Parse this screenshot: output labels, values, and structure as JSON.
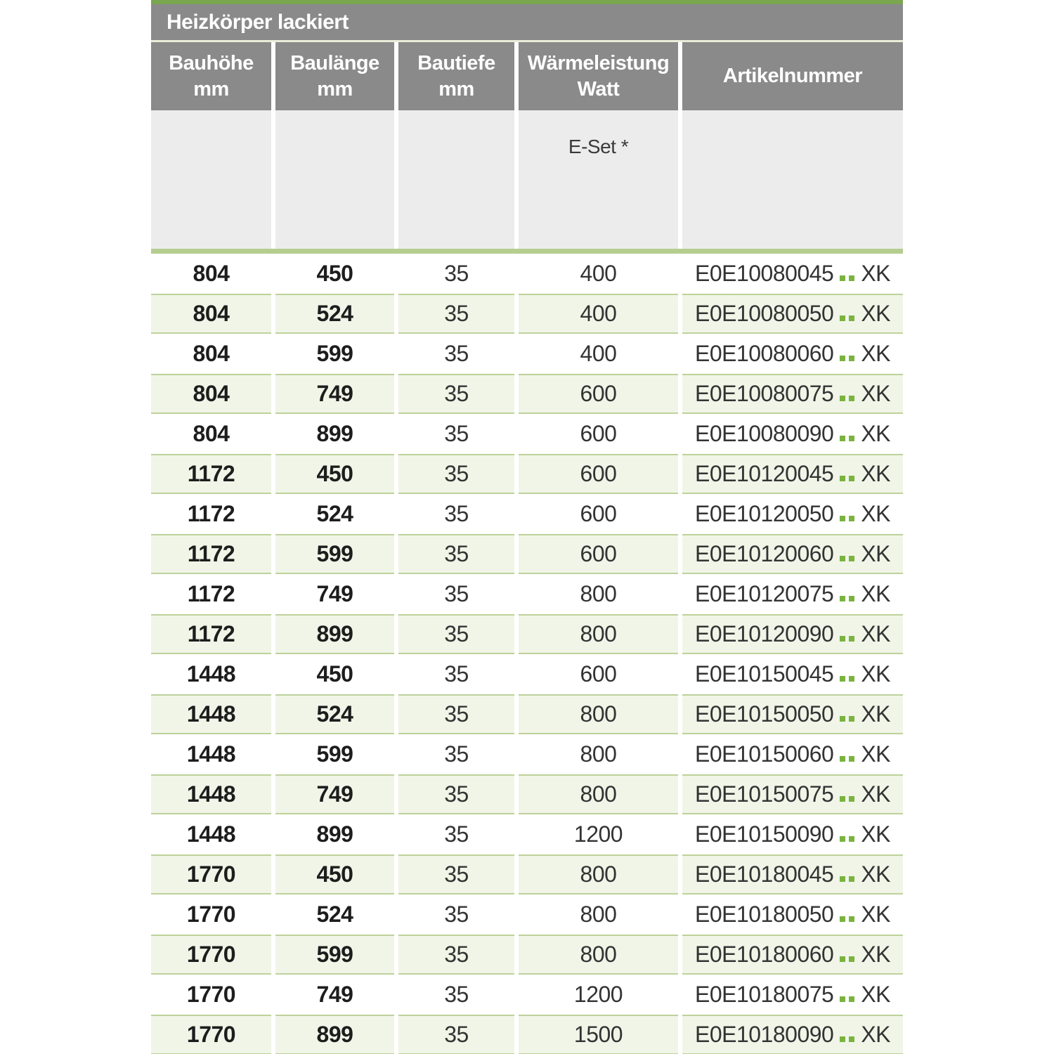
{
  "table": {
    "title": "Heizkörper lackiert",
    "columns": [
      {
        "label": "Bauhöhe",
        "sub": "mm"
      },
      {
        "label": "Baulänge",
        "sub": "mm"
      },
      {
        "label": "Bautiefe",
        "sub": "mm"
      },
      {
        "label": "Wärmeleistung",
        "sub": "Watt"
      },
      {
        "label": "Artikelnummer",
        "sub": ""
      }
    ],
    "subheader": {
      "eset_label": "E-Set *"
    },
    "rows": [
      {
        "bauhoehe": "804",
        "baulaenge": "450",
        "bautiefe": "35",
        "watt": "400",
        "artikel_prefix": "E0E10080045",
        "artikel_suffix": "XK"
      },
      {
        "bauhoehe": "804",
        "baulaenge": "524",
        "bautiefe": "35",
        "watt": "400",
        "artikel_prefix": "E0E10080050",
        "artikel_suffix": "XK"
      },
      {
        "bauhoehe": "804",
        "baulaenge": "599",
        "bautiefe": "35",
        "watt": "400",
        "artikel_prefix": "E0E10080060",
        "artikel_suffix": "XK"
      },
      {
        "bauhoehe": "804",
        "baulaenge": "749",
        "bautiefe": "35",
        "watt": "600",
        "artikel_prefix": "E0E10080075",
        "artikel_suffix": "XK"
      },
      {
        "bauhoehe": "804",
        "baulaenge": "899",
        "bautiefe": "35",
        "watt": "600",
        "artikel_prefix": "E0E10080090",
        "artikel_suffix": "XK"
      },
      {
        "bauhoehe": "1172",
        "baulaenge": "450",
        "bautiefe": "35",
        "watt": "600",
        "artikel_prefix": "E0E10120045",
        "artikel_suffix": "XK"
      },
      {
        "bauhoehe": "1172",
        "baulaenge": "524",
        "bautiefe": "35",
        "watt": "600",
        "artikel_prefix": "E0E10120050",
        "artikel_suffix": "XK"
      },
      {
        "bauhoehe": "1172",
        "baulaenge": "599",
        "bautiefe": "35",
        "watt": "600",
        "artikel_prefix": "E0E10120060",
        "artikel_suffix": "XK"
      },
      {
        "bauhoehe": "1172",
        "baulaenge": "749",
        "bautiefe": "35",
        "watt": "800",
        "artikel_prefix": "E0E10120075",
        "artikel_suffix": "XK"
      },
      {
        "bauhoehe": "1172",
        "baulaenge": "899",
        "bautiefe": "35",
        "watt": "800",
        "artikel_prefix": "E0E10120090",
        "artikel_suffix": "XK"
      },
      {
        "bauhoehe": "1448",
        "baulaenge": "450",
        "bautiefe": "35",
        "watt": "600",
        "artikel_prefix": "E0E10150045",
        "artikel_suffix": "XK"
      },
      {
        "bauhoehe": "1448",
        "baulaenge": "524",
        "bautiefe": "35",
        "watt": "800",
        "artikel_prefix": "E0E10150050",
        "artikel_suffix": "XK"
      },
      {
        "bauhoehe": "1448",
        "baulaenge": "599",
        "bautiefe": "35",
        "watt": "800",
        "artikel_prefix": "E0E10150060",
        "artikel_suffix": "XK"
      },
      {
        "bauhoehe": "1448",
        "baulaenge": "749",
        "bautiefe": "35",
        "watt": "800",
        "artikel_prefix": "E0E10150075",
        "artikel_suffix": "XK"
      },
      {
        "bauhoehe": "1448",
        "baulaenge": "899",
        "bautiefe": "35",
        "watt": "1200",
        "artikel_prefix": "E0E10150090",
        "artikel_suffix": "XK"
      },
      {
        "bauhoehe": "1770",
        "baulaenge": "450",
        "bautiefe": "35",
        "watt": "800",
        "artikel_prefix": "E0E10180045",
        "artikel_suffix": "XK"
      },
      {
        "bauhoehe": "1770",
        "baulaenge": "524",
        "bautiefe": "35",
        "watt": "800",
        "artikel_prefix": "E0E10180050",
        "artikel_suffix": "XK"
      },
      {
        "bauhoehe": "1770",
        "baulaenge": "599",
        "bautiefe": "35",
        "watt": "800",
        "artikel_prefix": "E0E10180060",
        "artikel_suffix": "XK"
      },
      {
        "bauhoehe": "1770",
        "baulaenge": "749",
        "bautiefe": "35",
        "watt": "1200",
        "artikel_prefix": "E0E10180075",
        "artikel_suffix": "XK"
      },
      {
        "bauhoehe": "1770",
        "baulaenge": "899",
        "bautiefe": "35",
        "watt": "1500",
        "artikel_prefix": "E0E10180090",
        "artikel_suffix": "XK"
      }
    ],
    "colors": {
      "top_strip_green": "#79a64f",
      "header_gray": "#8a8a8a",
      "separator_light": "#e8edd8",
      "subheader_gray": "#ececec",
      "green_bar": "#b5cd8e",
      "row_green_fill": "#f1f5e8",
      "row_green_border": "#bdd29a",
      "dot_green": "#7ab33e",
      "text_dark": "#333333"
    }
  }
}
